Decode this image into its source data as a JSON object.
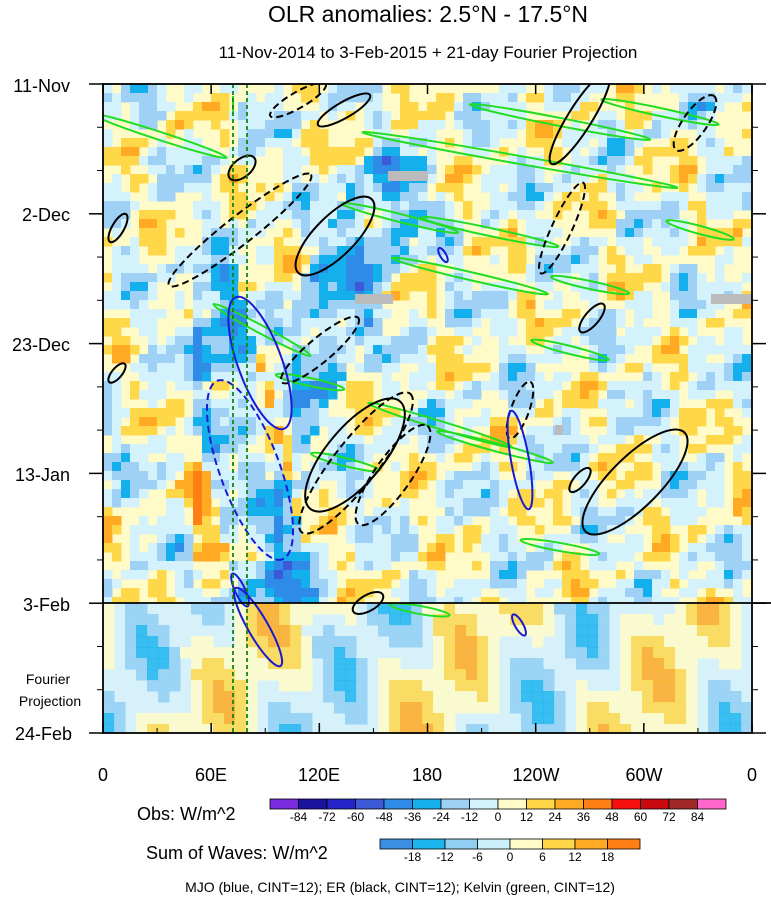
{
  "chart_data": {
    "type": "heatmap",
    "title": "OLR anomalies: 2.5°N - 17.5°N",
    "subtitle": "11-Nov-2014 to 3-Feb-2015 + 21-day Fourier Projection",
    "xlabel": "",
    "ylabel": "",
    "x_ticks": [
      "0",
      "60E",
      "120E",
      "180",
      "120W",
      "60W",
      "0"
    ],
    "x_range_deg_east": [
      0,
      360
    ],
    "y_ticks": [
      "11-Nov",
      "2-Dec",
      "23-Dec",
      "13-Jan",
      "3-Feb",
      "24-Feb"
    ],
    "y_range": [
      "2014-11-11",
      "2015-02-24"
    ],
    "observed_end": "2015-02-03",
    "projection_label": "Fourier Projection",
    "reference_lines_longitude": [
      72,
      80
    ],
    "obs_colorbar": {
      "label": "Obs: W/m^2",
      "levels": [
        -84,
        -72,
        -60,
        -48,
        -36,
        -24,
        -12,
        0,
        12,
        24,
        36,
        48,
        60,
        72,
        84
      ],
      "colors": [
        "#7a2be0",
        "#1a139e",
        "#2424c8",
        "#3c5ad8",
        "#2f8be8",
        "#14b0ee",
        "#9fd0f5",
        "#d4f2fb",
        "#fffbc8",
        "#ffd84a",
        "#ffaa22",
        "#ff7f15",
        "#f81010",
        "#c80a10",
        "#a02828",
        "#ff66cc"
      ]
    },
    "waves_colorbar": {
      "label": "Sum of Waves: W/m^2",
      "levels": [
        -18,
        -12,
        -6,
        0,
        6,
        12,
        18
      ],
      "colors": [
        "#3d8fe3",
        "#1cb5ee",
        "#90cff3",
        "#cdeffa",
        "#fffbc8",
        "#ffd84a",
        "#ffaa22",
        "#ff7f15"
      ]
    },
    "footer": "MJO (blue, CINT=12); ER (black, CINT=12); Kelvin (green, CINT=12)",
    "series": [
      {
        "name": "MJO",
        "color": "#1a1ad0",
        "contour_interval": 12
      },
      {
        "name": "ER",
        "color": "#000000",
        "contour_interval": 12
      },
      {
        "name": "Kelvin",
        "color": "#22dd22",
        "contour_interval": 12
      }
    ],
    "grid": false
  }
}
